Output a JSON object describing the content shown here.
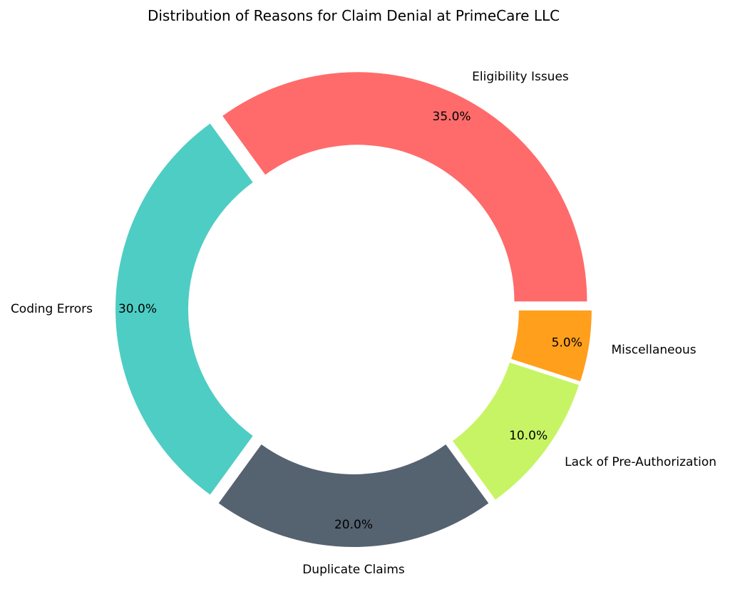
{
  "chart_data": {
    "type": "pie",
    "title": "Distribution of Reasons for Claim Denial at PrimeCare LLC",
    "donut": true,
    "start_angle_deg": 0,
    "direction": "counterclockwise",
    "slices": [
      {
        "label": "Eligibility Issues",
        "value": 35.0,
        "pct_label": "35.0%",
        "color": "#FF6B6B"
      },
      {
        "label": "Coding Errors",
        "value": 30.0,
        "pct_label": "30.0%",
        "color": "#4ECDC4"
      },
      {
        "label": "Duplicate Claims",
        "value": 20.0,
        "pct_label": "20.0%",
        "color": "#556270"
      },
      {
        "label": "Lack of Pre-Authorization",
        "value": 10.0,
        "pct_label": "10.0%",
        "color": "#C7F464"
      },
      {
        "label": "Miscellaneous",
        "value": 5.0,
        "pct_label": "5.0%",
        "color": "#FF9F1C"
      }
    ]
  }
}
